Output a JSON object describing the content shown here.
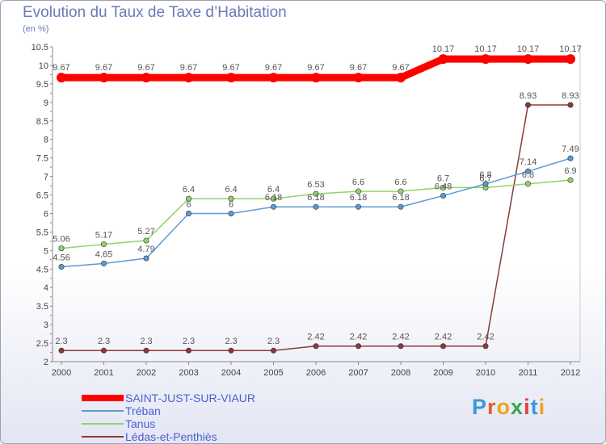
{
  "title": "Evolution du Taux de Taxe d’Habitation",
  "subtitle": "(en %)",
  "logo_text": "Proxiti",
  "logo_colors": [
    "#3a9ad9",
    "#e85c2a",
    "#f2a21b",
    "#3aa64a",
    "#e23b3b",
    "#3a9ad9",
    "#f2a21b"
  ],
  "chart_data": {
    "type": "line",
    "x": [
      "2000",
      "2001",
      "2002",
      "2003",
      "2004",
      "2005",
      "2006",
      "2007",
      "2008",
      "2009",
      "2010",
      "2011",
      "2012"
    ],
    "ylim": [
      2,
      10.5
    ],
    "yticks": [
      "2",
      "2.5",
      "3",
      "3.5",
      "4",
      "4.5",
      "5",
      "5.5",
      "6",
      "6.5",
      "7",
      "7.5",
      "8",
      "8.5",
      "9",
      "9.5",
      "10",
      "10.5"
    ],
    "grid": false,
    "legend_position": "bottom-left",
    "series": [
      {
        "name": "SAINT-JUST-SUR-VIAUR",
        "color": "#ff0000",
        "values": [
          9.67,
          9.67,
          9.67,
          9.67,
          9.67,
          9.67,
          9.67,
          9.67,
          9.67,
          10.17,
          10.17,
          10.17,
          10.17
        ],
        "labels": [
          "9.67",
          "9.67",
          "9.67",
          "9.67",
          "9.67",
          "9.67",
          "9.67",
          "9.67",
          "9.67",
          "10.17",
          "10.17",
          "10.17",
          "10.17"
        ]
      },
      {
        "name": "Tréban",
        "color": "#5b9bd5",
        "values": [
          4.56,
          4.65,
          4.79,
          6,
          6,
          6.18,
          6.18,
          6.18,
          6.18,
          6.48,
          6.8,
          7.14,
          7.49
        ],
        "labels": [
          "4.56",
          "4.65",
          "4.79",
          "6",
          "6",
          "6.18",
          "6.18",
          "6.18",
          "6.18",
          "6.48",
          "6.8",
          "7.14",
          "7.49"
        ]
      },
      {
        "name": "Tanus",
        "color": "#8fd46a",
        "values": [
          5.06,
          5.17,
          5.27,
          6.4,
          6.4,
          6.4,
          6.53,
          6.6,
          6.6,
          6.7,
          6.7,
          6.8,
          6.9
        ],
        "labels": [
          "5.06",
          "5.17",
          "5.27",
          "6.4",
          "6.4",
          "6.4",
          "6.53",
          "6.6",
          "6.6",
          "6.7",
          "6.7",
          "6.8",
          "6.9"
        ]
      },
      {
        "name": "Lédas-et-Penthiès",
        "color": "#8b3a3a",
        "values": [
          2.3,
          2.3,
          2.3,
          2.3,
          2.3,
          2.3,
          2.42,
          2.42,
          2.42,
          2.42,
          2.42,
          8.93,
          8.93
        ],
        "labels": [
          "2.3",
          "2.3",
          "2.3",
          "2.3",
          "2.3",
          "2.3",
          "2.42",
          "2.42",
          "2.42",
          "2.42",
          "2.42",
          "8.93",
          "8.93"
        ]
      }
    ]
  }
}
